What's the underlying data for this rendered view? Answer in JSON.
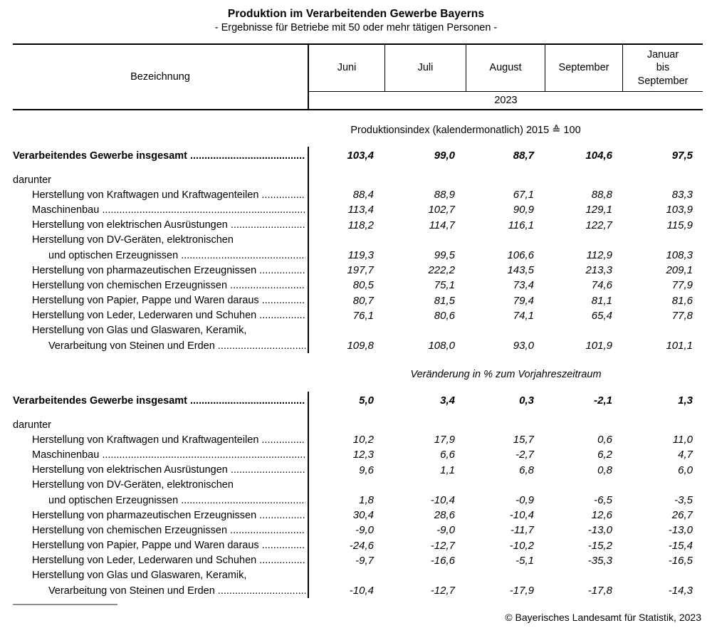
{
  "title": "Produktion im Verarbeitenden Gewerbe Bayerns",
  "subtitle": "- Ergebnisse für Betriebe mit 50 oder mehr tätigen Personen -",
  "table": {
    "col_header": "Bezeichnung",
    "months": [
      "Juni",
      "Juli",
      "August",
      "September",
      "Januar\nbis\nSeptember"
    ],
    "year": "2023"
  },
  "sections": [
    {
      "heading": "Produktionsindex (kalendermonatlich) 2015 ≙ 100",
      "rows": [
        {
          "label": "Verarbeitendes Gewerbe insgesamt",
          "indent": 0,
          "dots": true,
          "total": true,
          "values": [
            "103,4",
            "99,0",
            "88,7",
            "104,6",
            "97,5"
          ]
        },
        {
          "spacer": true
        },
        {
          "label": "darunter",
          "indent": 0,
          "dots": false,
          "values": null
        },
        {
          "label": "Herstellung von Kraftwagen und Kraftwagenteilen",
          "indent": 1,
          "dots": true,
          "values": [
            "88,4",
            "88,9",
            "67,1",
            "88,8",
            "83,3"
          ]
        },
        {
          "label": "Maschinenbau",
          "indent": 1,
          "dots": true,
          "values": [
            "113,4",
            "102,7",
            "90,9",
            "129,1",
            "103,9"
          ]
        },
        {
          "label": "Herstellung von elektrischen Ausrüstungen",
          "indent": 1,
          "dots": true,
          "values": [
            "118,2",
            "114,7",
            "116,1",
            "122,7",
            "115,9"
          ]
        },
        {
          "label": "Herstellung von DV-Geräten, elektronischen",
          "indent": 1,
          "dots": false,
          "values": null
        },
        {
          "label": "und optischen Erzeugnissen",
          "indent": 2,
          "dots": true,
          "values": [
            "119,3",
            "99,5",
            "106,6",
            "112,9",
            "108,3"
          ]
        },
        {
          "label": "Herstellung von pharmazeutischen Erzeugnissen",
          "indent": 1,
          "dots": true,
          "values": [
            "197,7",
            "222,2",
            "143,5",
            "213,3",
            "209,1"
          ]
        },
        {
          "label": "Herstellung von chemischen Erzeugnissen",
          "indent": 1,
          "dots": true,
          "values": [
            "80,5",
            "75,1",
            "73,4",
            "74,6",
            "77,9"
          ]
        },
        {
          "label": "Herstellung von Papier, Pappe und Waren daraus",
          "indent": 1,
          "dots": true,
          "values": [
            "80,7",
            "81,5",
            "79,4",
            "81,1",
            "81,6"
          ]
        },
        {
          "label": "Herstellung von Leder, Lederwaren und Schuhen",
          "indent": 1,
          "dots": true,
          "values": [
            "76,1",
            "80,6",
            "74,1",
            "65,4",
            "77,8"
          ]
        },
        {
          "label": "Herstellung von Glas und Glaswaren, Keramik,",
          "indent": 1,
          "dots": false,
          "values": null
        },
        {
          "label": "Verarbeitung von Steinen und Erden",
          "indent": 2,
          "dots": true,
          "values": [
            "109,8",
            "108,0",
            "93,0",
            "101,9",
            "101,1"
          ]
        }
      ]
    },
    {
      "heading": "Veränderung in % zum Vorjahreszeitraum",
      "rows": [
        {
          "label": "Verarbeitendes Gewerbe insgesamt",
          "indent": 0,
          "dots": true,
          "total": true,
          "values": [
            "5,0",
            "3,4",
            "0,3",
            "-2,1",
            "1,3"
          ]
        },
        {
          "spacer": true
        },
        {
          "label": "darunter",
          "indent": 0,
          "dots": false,
          "values": null
        },
        {
          "label": "Herstellung von Kraftwagen und Kraftwagenteilen",
          "indent": 1,
          "dots": true,
          "values": [
            "10,2",
            "17,9",
            "15,7",
            "0,6",
            "11,0"
          ]
        },
        {
          "label": "Maschinenbau",
          "indent": 1,
          "dots": true,
          "values": [
            "12,3",
            "6,6",
            "-2,7",
            "6,2",
            "4,7"
          ]
        },
        {
          "label": "Herstellung von elektrischen Ausrüstungen",
          "indent": 1,
          "dots": true,
          "values": [
            "9,6",
            "1,1",
            "6,8",
            "0,8",
            "6,0"
          ]
        },
        {
          "label": "Herstellung von DV-Geräten, elektronischen",
          "indent": 1,
          "dots": false,
          "values": null
        },
        {
          "label": "und optischen Erzeugnissen",
          "indent": 2,
          "dots": true,
          "values": [
            "1,8",
            "-10,4",
            "-0,9",
            "-6,5",
            "-3,5"
          ]
        },
        {
          "label": "Herstellung von pharmazeutischen Erzeugnissen",
          "indent": 1,
          "dots": true,
          "values": [
            "30,4",
            "28,6",
            "-10,4",
            "12,6",
            "26,7"
          ]
        },
        {
          "label": "Herstellung von chemischen Erzeugnissen",
          "indent": 1,
          "dots": true,
          "values": [
            "-9,0",
            "-9,0",
            "-11,7",
            "-13,0",
            "-13,0"
          ]
        },
        {
          "label": "Herstellung von Papier, Pappe und Waren daraus",
          "indent": 1,
          "dots": true,
          "values": [
            "-24,6",
            "-12,7",
            "-10,2",
            "-15,2",
            "-15,4"
          ]
        },
        {
          "label": "Herstellung von Leder, Lederwaren und Schuhen",
          "indent": 1,
          "dots": true,
          "values": [
            "-9,7",
            "-16,6",
            "-5,1",
            "-35,3",
            "-16,5"
          ]
        },
        {
          "label": "Herstellung von Glas und Glaswaren, Keramik,",
          "indent": 1,
          "dots": false,
          "values": null
        },
        {
          "label": "Verarbeitung von Steinen und Erden",
          "indent": 2,
          "dots": true,
          "values": [
            "-10,4",
            "-12,7",
            "-17,9",
            "-17,8",
            "-14,3"
          ]
        }
      ]
    }
  ],
  "footer": "© Bayerisches Landesamt für Statistik, 2023"
}
